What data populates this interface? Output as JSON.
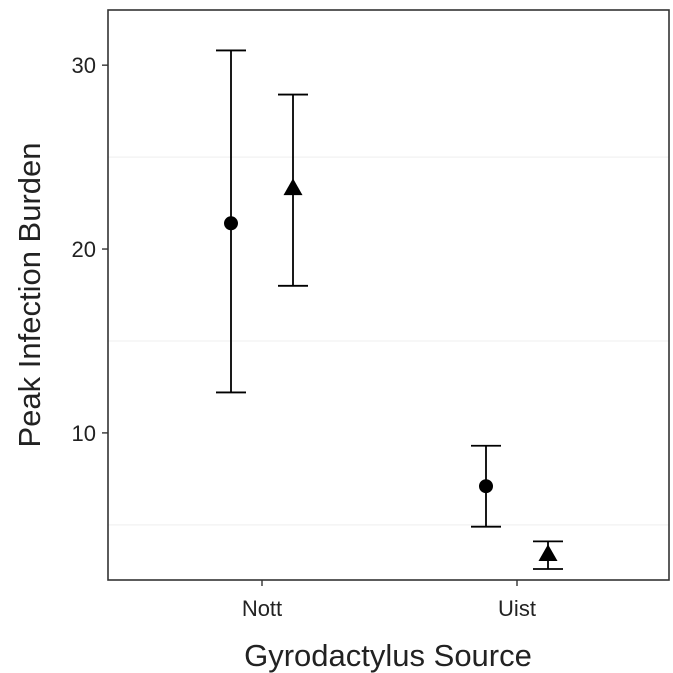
{
  "chart_data": {
    "type": "scatter",
    "xlabel": "Gyrodactylus Source",
    "ylabel": "Peak Infection Burden",
    "categories": [
      "Nott",
      "Uist"
    ],
    "ylim": [
      2.0,
      33.0
    ],
    "y_ticks": [
      10,
      20,
      30
    ],
    "y_minor_gridlines": [
      5,
      15,
      25
    ],
    "grid": "minor horizontal only, very faint",
    "legend": "none",
    "series": [
      {
        "marker": "circle",
        "points": [
          {
            "category": "Nott",
            "y": 21.4,
            "lower": 12.2,
            "upper": 30.8
          },
          {
            "category": "Uist",
            "y": 7.1,
            "lower": 4.9,
            "upper": 9.3
          }
        ]
      },
      {
        "marker": "triangle",
        "points": [
          {
            "category": "Nott",
            "y": 23.3,
            "lower": 18.0,
            "upper": 28.4
          },
          {
            "category": "Uist",
            "y": 3.4,
            "lower": 2.6,
            "upper": 4.1
          }
        ]
      }
    ],
    "colors": {
      "marker": "#000000",
      "panel_border": "#333333",
      "gridline": "#f2f2f2"
    }
  }
}
